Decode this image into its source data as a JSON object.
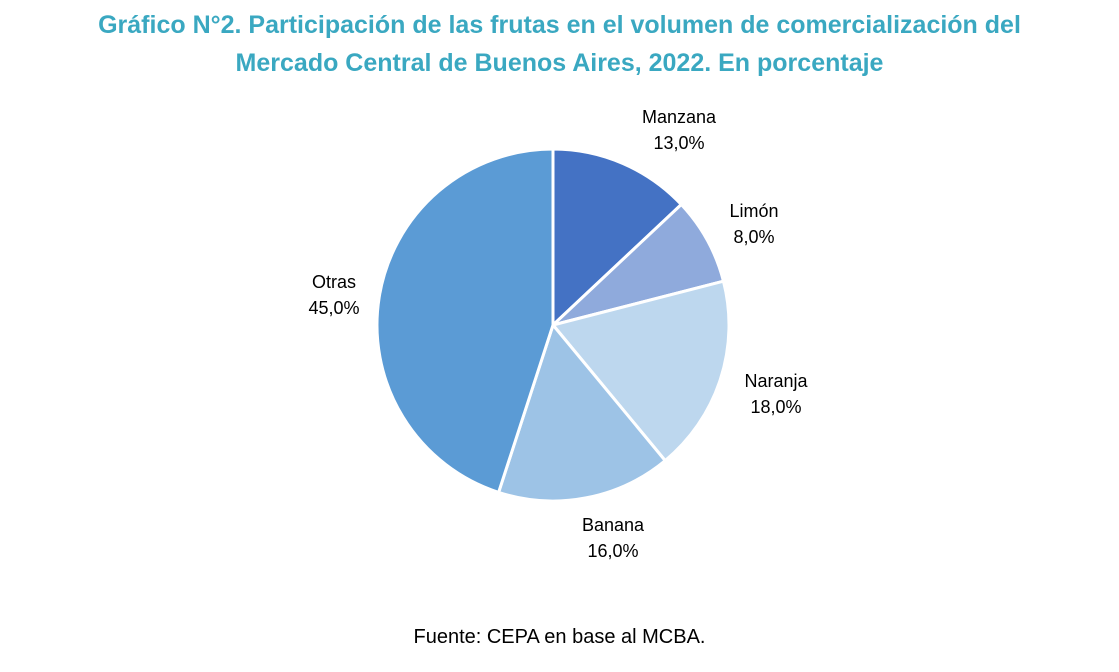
{
  "title_lines": [
    "Gráfico N°2. Participación de las frutas en el volumen de comercialización del",
    "Mercado Central de Buenos Aires, 2022. En porcentaje"
  ],
  "source": "Fuente: CEPA en base al MCBA.",
  "chart_data": {
    "type": "pie",
    "title": "Gráfico N°2. Participación de las frutas en el volumen de comercialización del Mercado Central de Buenos Aires, 2022. En porcentaje",
    "slices": [
      {
        "label": "Manzana",
        "value": 13.0,
        "value_label": "13,0%",
        "color": "#4472c4"
      },
      {
        "label": "Limón",
        "value": 8.0,
        "value_label": "8,0%",
        "color": "#8faadc"
      },
      {
        "label": "Naranja",
        "value": 18.0,
        "value_label": "18,0%",
        "color": "#bdd7ee"
      },
      {
        "label": "Banana",
        "value": 16.0,
        "value_label": "16,0%",
        "color": "#9dc3e6"
      },
      {
        "label": "Otras",
        "value": 45.0,
        "value_label": "45,0%",
        "color": "#5b9bd5"
      }
    ],
    "start_angle": "12 o'clock, clockwise",
    "legend": "none",
    "data_labels": "outside"
  }
}
